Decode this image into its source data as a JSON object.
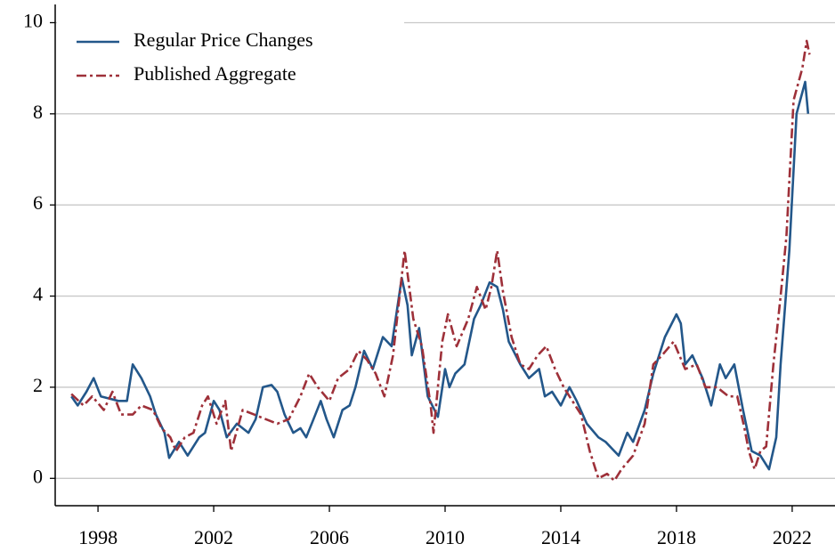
{
  "chart_data": {
    "type": "line",
    "xlim": [
      1996.52,
      2023.48
    ],
    "ylim": [
      -0.6,
      10.4
    ],
    "xticks": [
      1998,
      2002,
      2006,
      2010,
      2014,
      2018,
      2022
    ],
    "yticks": [
      0,
      2,
      4,
      6,
      8,
      10
    ],
    "grid": true,
    "legend": "upper left",
    "series": [
      {
        "name": "Regular Price Changes",
        "color": "#23578a",
        "style": "solid",
        "x": [
          1997.08,
          1997.3,
          1997.6,
          1997.85,
          1998.1,
          1998.4,
          1998.7,
          1999.0,
          1999.2,
          1999.5,
          1999.8,
          2000.0,
          2000.3,
          2000.46,
          2000.8,
          2001.1,
          2001.5,
          2001.7,
          2002.0,
          2002.2,
          2002.45,
          2002.8,
          2003.2,
          2003.45,
          2003.7,
          2004.0,
          2004.2,
          2004.45,
          2004.75,
          2005.0,
          2005.2,
          2005.45,
          2005.7,
          2005.9,
          2006.15,
          2006.45,
          2006.7,
          2006.9,
          2007.2,
          2007.5,
          2007.85,
          2008.15,
          2008.5,
          2008.7,
          2008.85,
          2009.1,
          2009.4,
          2009.75,
          2010.0,
          2010.15,
          2010.35,
          2010.67,
          2011.0,
          2011.23,
          2011.54,
          2011.8,
          2012.0,
          2012.2,
          2012.6,
          2012.9,
          2013.25,
          2013.45,
          2013.7,
          2014.0,
          2014.3,
          2014.55,
          2014.9,
          2015.3,
          2015.55,
          2015.85,
          2016.0,
          2016.3,
          2016.5,
          2016.9,
          2017.2,
          2017.6,
          2018.0,
          2018.15,
          2018.3,
          2018.55,
          2018.9,
          2019.2,
          2019.5,
          2019.7,
          2020.0,
          2020.3,
          2020.6,
          2020.9,
          2021.2,
          2021.45,
          2021.6,
          2021.9,
          2022.15,
          2022.45,
          2022.55
        ],
        "values": [
          1.8,
          1.6,
          1.9,
          2.2,
          1.8,
          1.75,
          1.7,
          1.7,
          2.5,
          2.2,
          1.8,
          1.4,
          1.0,
          0.45,
          0.8,
          0.5,
          0.9,
          1.0,
          1.7,
          1.5,
          0.9,
          1.2,
          1.0,
          1.3,
          2.0,
          2.05,
          1.9,
          1.4,
          1.0,
          1.1,
          0.9,
          1.3,
          1.7,
          1.3,
          0.9,
          1.5,
          1.6,
          2.0,
          2.8,
          2.4,
          3.1,
          2.9,
          4.4,
          3.8,
          2.7,
          3.3,
          1.8,
          1.35,
          2.4,
          2.0,
          2.3,
          2.5,
          3.5,
          3.8,
          4.3,
          4.2,
          3.7,
          3.0,
          2.5,
          2.2,
          2.4,
          1.8,
          1.9,
          1.6,
          2.0,
          1.7,
          1.2,
          0.9,
          0.8,
          0.6,
          0.5,
          1.0,
          0.8,
          1.5,
          2.3,
          3.1,
          3.6,
          3.4,
          2.5,
          2.7,
          2.2,
          1.6,
          2.5,
          2.2,
          2.5,
          1.5,
          0.6,
          0.5,
          0.2,
          0.9,
          2.5,
          5.0,
          8.0,
          8.7,
          8.0
        ]
      },
      {
        "name": "Published Aggregate",
        "color": "#9e3039",
        "style": "dashed",
        "x": [
          1997.08,
          1997.5,
          1997.8,
          1998.2,
          1998.5,
          1998.8,
          1999.2,
          1999.5,
          1999.9,
          2000.2,
          2000.5,
          2000.7,
          2001.0,
          2001.3,
          2001.6,
          2001.8,
          2002.1,
          2002.4,
          2002.6,
          2003.0,
          2003.4,
          2003.8,
          2004.2,
          2004.6,
          2005.0,
          2005.3,
          2005.6,
          2006.0,
          2006.3,
          2006.7,
          2007.0,
          2007.3,
          2007.6,
          2007.9,
          2008.2,
          2008.6,
          2008.9,
          2009.2,
          2009.5,
          2009.6,
          2009.9,
          2010.1,
          2010.4,
          2010.8,
          2011.1,
          2011.4,
          2011.6,
          2011.8,
          2012.0,
          2012.3,
          2012.6,
          2012.9,
          2013.2,
          2013.5,
          2013.8,
          2014.1,
          2014.4,
          2014.7,
          2015.0,
          2015.3,
          2015.6,
          2015.85,
          2016.1,
          2016.5,
          2016.9,
          2017.2,
          2017.5,
          2017.9,
          2018.3,
          2018.7,
          2019.0,
          2019.4,
          2019.8,
          2020.1,
          2020.35,
          2020.5,
          2020.7,
          2020.9,
          2021.1,
          2021.35,
          2021.6,
          2021.8,
          2022.05,
          2022.35,
          2022.5,
          2022.6
        ],
        "values": [
          1.85,
          1.6,
          1.8,
          1.5,
          1.9,
          1.4,
          1.4,
          1.6,
          1.5,
          1.1,
          0.9,
          0.6,
          0.9,
          1.0,
          1.6,
          1.8,
          1.2,
          1.7,
          0.6,
          1.5,
          1.4,
          1.3,
          1.2,
          1.3,
          1.8,
          2.3,
          2.0,
          1.7,
          2.2,
          2.4,
          2.8,
          2.6,
          2.3,
          1.8,
          2.7,
          5.0,
          3.5,
          2.9,
          1.6,
          1.0,
          3.0,
          3.6,
          2.9,
          3.5,
          4.2,
          3.7,
          4.2,
          5.0,
          4.1,
          3.1,
          2.5,
          2.4,
          2.7,
          2.9,
          2.4,
          2.0,
          1.7,
          1.4,
          0.6,
          0.0,
          0.1,
          -0.05,
          0.2,
          0.5,
          1.2,
          2.5,
          2.7,
          3.0,
          2.4,
          2.5,
          2.0,
          2.0,
          1.8,
          1.8,
          1.1,
          0.6,
          0.2,
          0.6,
          0.7,
          2.5,
          4.0,
          5.3,
          8.3,
          9.0,
          9.6,
          9.3
        ]
      }
    ]
  }
}
